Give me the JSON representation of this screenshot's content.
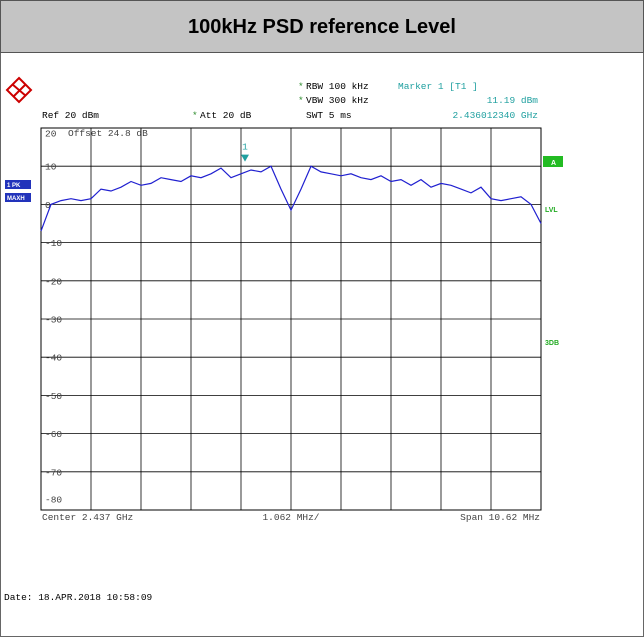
{
  "chart_data": {
    "type": "line",
    "title": "100kHz PSD reference Level",
    "header": {
      "rbw": "RBW 100 kHz",
      "vbw": "VBW 300 kHz",
      "swt": "SWT 5 ms",
      "marker": "Marker 1 [T1 ]",
      "marker_level": "11.19 dBm",
      "marker_freq": "2.436012340 GHz",
      "ref": "Ref 20 dBm",
      "att": "Att 20 dB",
      "offset": "Offset 24.8 dB"
    },
    "side_labels": {
      "trace": "1 PK",
      "mode": "MAXH",
      "a": "A",
      "lvl": "LVL",
      "db3": "3DB"
    },
    "footer": {
      "center": "Center 2.437 GHz",
      "div": "1.062 MHz/",
      "span": "Span 10.62 MHz"
    },
    "date": "Date: 18.APR.2018 10:58:09",
    "marker": {
      "name": "1",
      "value": 11.19
    },
    "color": "#2020d0",
    "ylim": [
      -80,
      20
    ],
    "yticks": [
      20,
      10,
      0,
      -10,
      -20,
      -30,
      -40,
      -50,
      -60,
      -70,
      -80
    ],
    "grid": true,
    "values": [
      -7,
      0,
      1,
      1.5,
      1,
      1.5,
      4,
      3.5,
      4.5,
      6,
      5,
      5.5,
      7,
      6.5,
      6,
      7.5,
      7,
      8,
      9.5,
      7,
      8,
      9,
      8.5,
      10,
      4,
      -1.5,
      4,
      10,
      8.5,
      8,
      7.5,
      8,
      7,
      6.5,
      7.5,
      6,
      6.5,
      5,
      6.5,
      4.5,
      5.5,
      5,
      4,
      3,
      4.5,
      1.5,
      1,
      1.5,
      2,
      0,
      -5
    ]
  }
}
